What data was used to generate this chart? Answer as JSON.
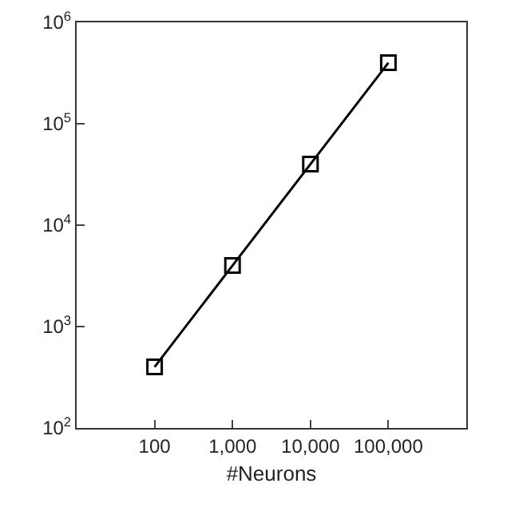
{
  "chart_data": {
    "type": "line",
    "xlabel": "#Neurons",
    "log": "xy",
    "x": [
      100,
      1000,
      10000,
      100000
    ],
    "series": [
      {
        "color": "#000000",
        "values": [
          400,
          4000,
          40000,
          400000
        ]
      }
    ],
    "xlim": [
      10,
      1000000
    ],
    "xticks": [
      {
        "value": 100,
        "label": "100"
      },
      {
        "value": 1000,
        "label": "1,000"
      },
      {
        "value": 10000,
        "label": "10,000"
      },
      {
        "value": 100000,
        "label": "100,000"
      }
    ],
    "ylim": [
      100,
      1000000
    ],
    "yticks": [
      {
        "value": 100,
        "label": "10$^{2}$"
      },
      {
        "value": 1000,
        "label": "10$^{3}$"
      },
      {
        "value": 10000,
        "label": "10$^{4}$"
      },
      {
        "value": 100000,
        "label": "10$^{5}$"
      },
      {
        "value": 1000000,
        "label": "10$^{6}$"
      }
    ],
    "grid": false,
    "legend": false,
    "marker": "square",
    "line_style": "solid"
  }
}
